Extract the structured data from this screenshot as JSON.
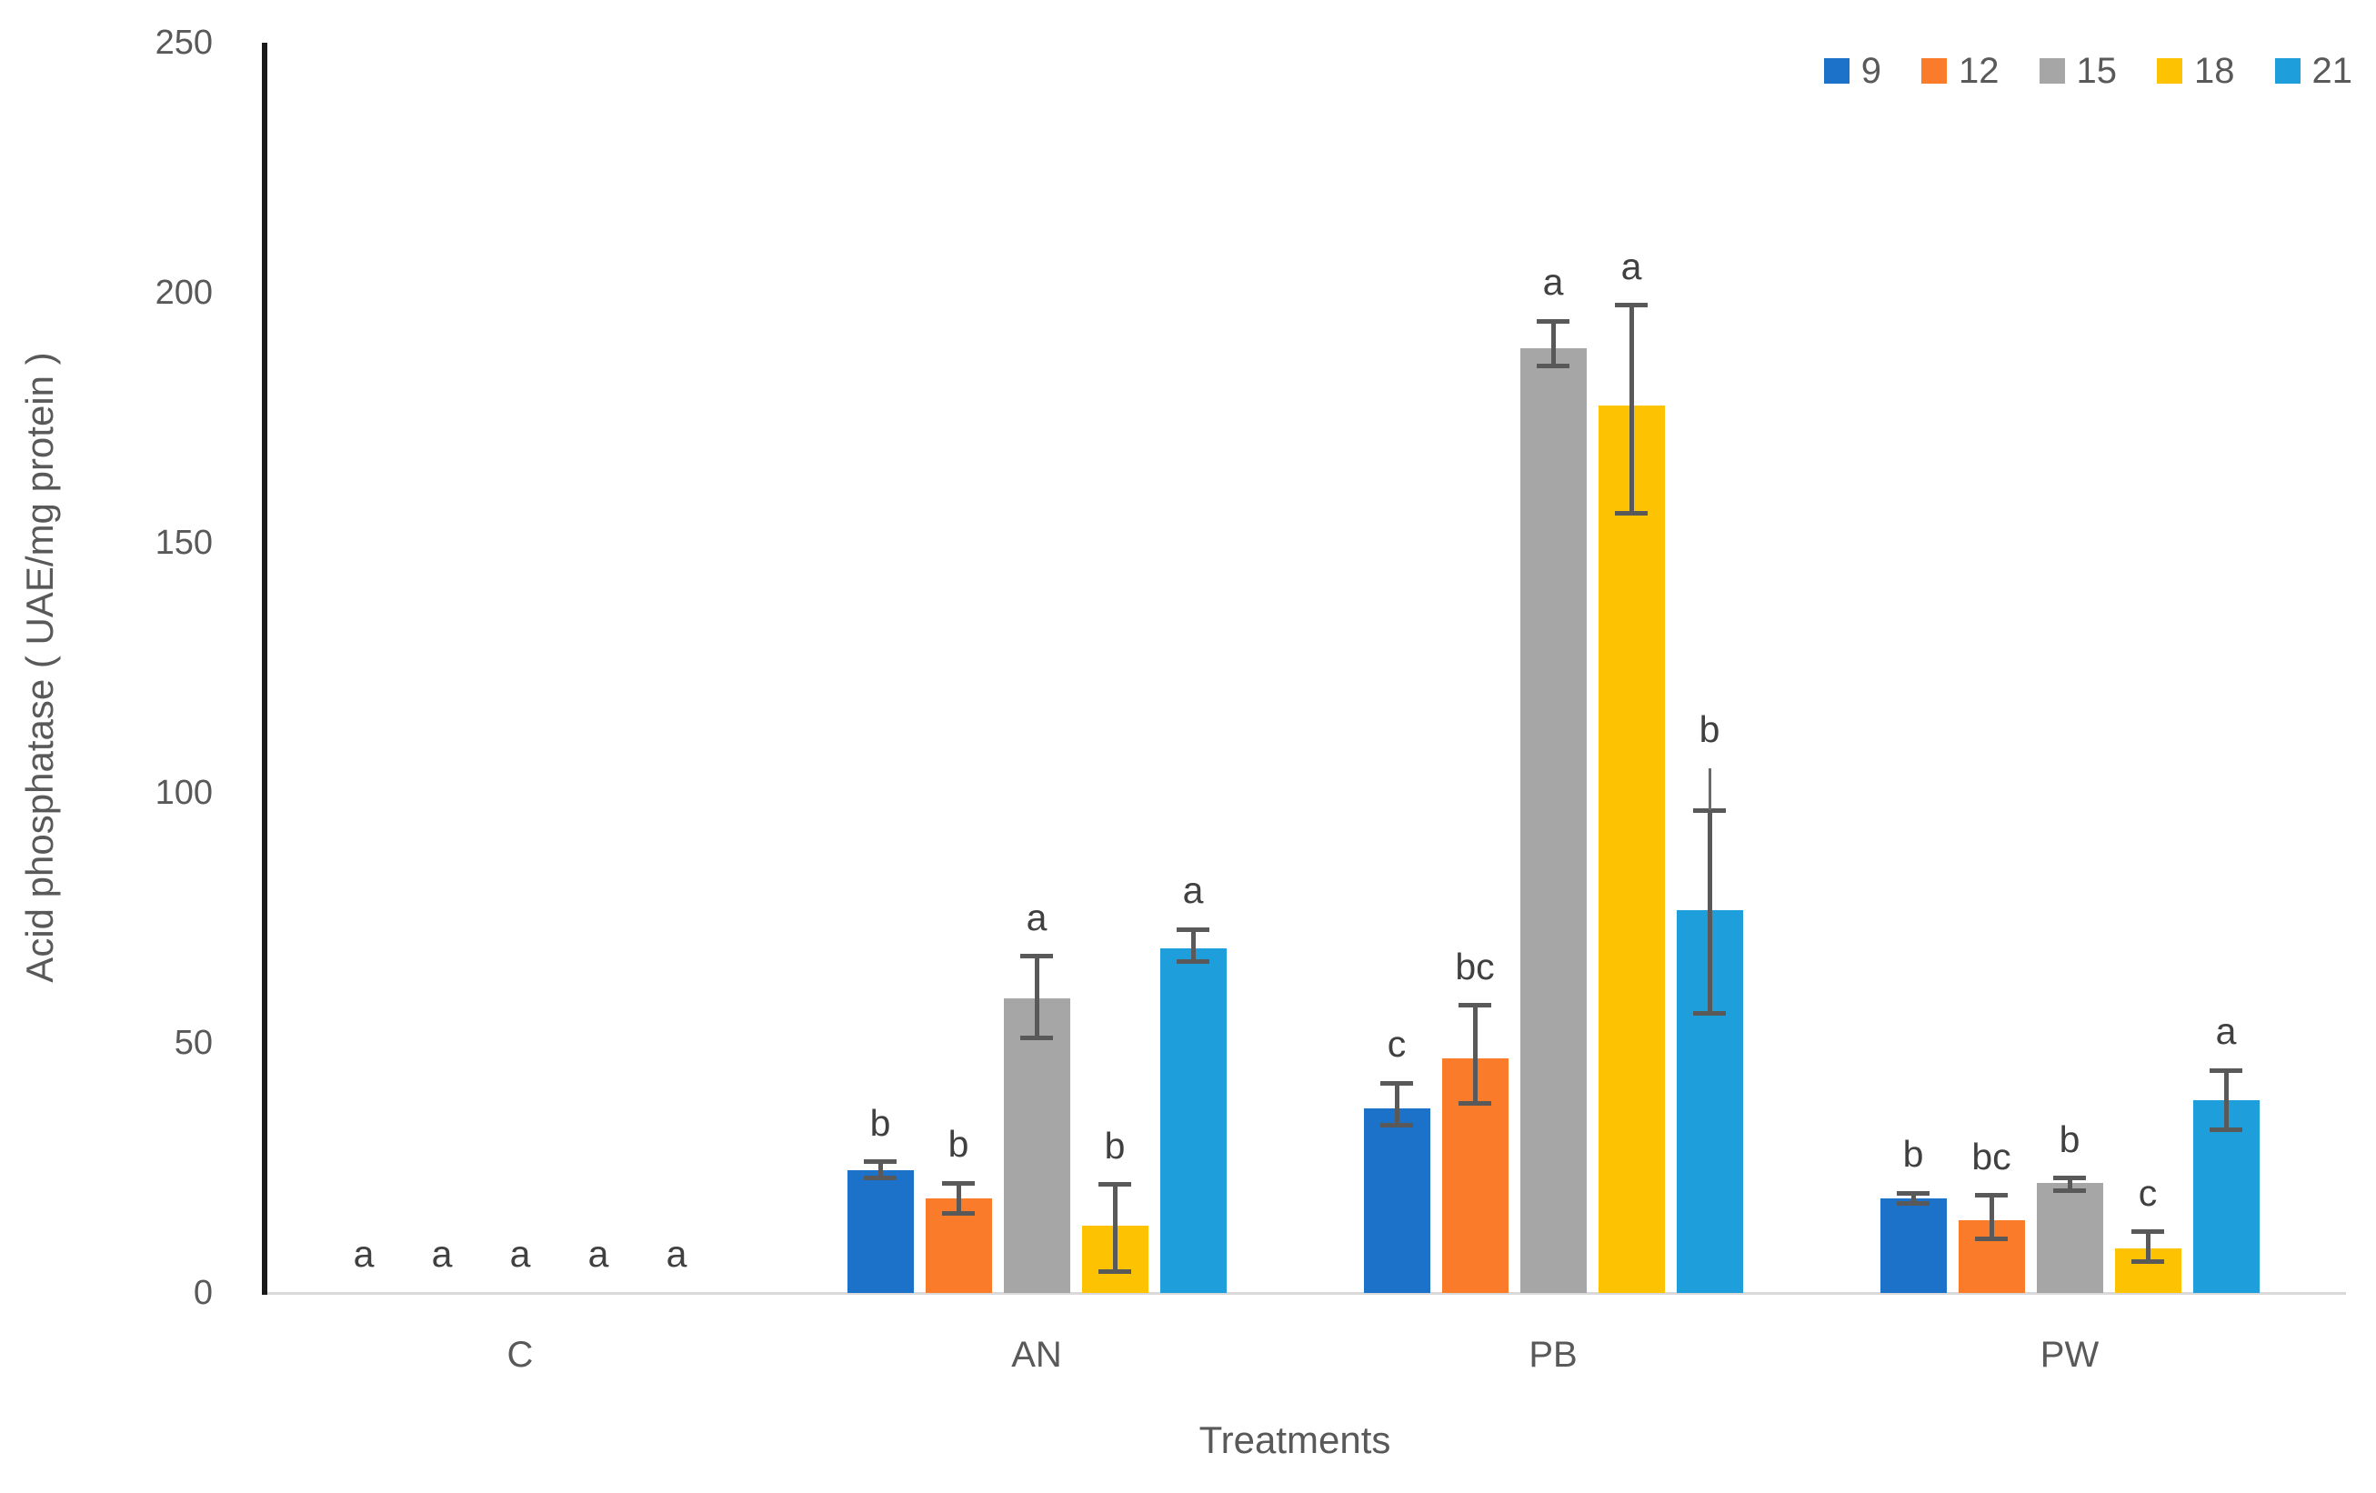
{
  "chart_data": {
    "type": "bar",
    "title": "",
    "xlabel": "Treatments",
    "ylabel": "Acid phosphatase ( UAE/mg protein )",
    "ylim": [
      0,
      250
    ],
    "yticks": [
      0,
      50,
      100,
      150,
      200,
      250
    ],
    "grid": false,
    "legend_position": "top-right",
    "categories": [
      "C",
      "AN",
      "PB",
      "PW"
    ],
    "series": [
      {
        "name": "9",
        "color": "#1C72C8",
        "points": [
          {
            "v": 0,
            "ep": 0,
            "em": 0,
            "letter": "a"
          },
          {
            "v": 24.5,
            "ep": 1.7,
            "em": 1.5,
            "letter": "b"
          },
          {
            "v": 37,
            "ep": 5,
            "em": 3.5,
            "letter": "c"
          },
          {
            "v": 19,
            "ep": 1,
            "em": 1,
            "letter": "b"
          }
        ]
      },
      {
        "name": "12",
        "color": "#FA7C2B",
        "points": [
          {
            "v": 0,
            "ep": 0,
            "em": 0,
            "letter": "a"
          },
          {
            "v": 19,
            "ep": 3,
            "em": 3,
            "letter": "b"
          },
          {
            "v": 47,
            "ep": 10.5,
            "em": 9,
            "letter": "bc"
          },
          {
            "v": 14.5,
            "ep": 5,
            "em": 3.7,
            "letter": "bc"
          }
        ]
      },
      {
        "name": "15",
        "color": "#A6A6A6",
        "points": [
          {
            "v": 0,
            "ep": 0,
            "em": 0,
            "letter": "a"
          },
          {
            "v": 59,
            "ep": 8.3,
            "em": 8,
            "letter": "a"
          },
          {
            "v": 189,
            "ep": 5.3,
            "em": 3.6,
            "letter": "a"
          },
          {
            "v": 22,
            "ep": 1,
            "em": 1.6,
            "letter": "b"
          }
        ]
      },
      {
        "name": "18",
        "color": "#FDC202",
        "points": [
          {
            "v": 0,
            "ep": 0,
            "em": 0,
            "letter": "a"
          },
          {
            "v": 13.5,
            "ep": 8.2,
            "em": 9.3,
            "letter": "b"
          },
          {
            "v": 177.5,
            "ep": 20,
            "em": 21.5,
            "letter": "a"
          },
          {
            "v": 9,
            "ep": 3.2,
            "em": 2.7,
            "letter": "c"
          }
        ]
      },
      {
        "name": "21",
        "color": "#1E9FDC",
        "points": [
          {
            "v": 0,
            "ep": 0,
            "em": 0,
            "letter": "a"
          },
          {
            "v": 69,
            "ep": 3.7,
            "em": 2.8,
            "letter": "a"
          },
          {
            "v": 76.5,
            "ep": 20,
            "em": 20.5,
            "letter": "b",
            "ext": 105
          },
          {
            "v": 38.5,
            "ep": 6,
            "em": 5.8,
            "letter": "a"
          }
        ]
      }
    ]
  }
}
